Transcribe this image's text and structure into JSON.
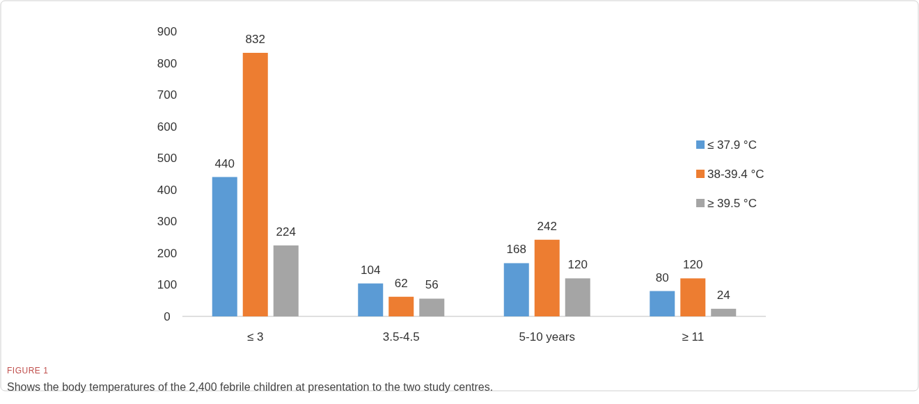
{
  "chart_data": {
    "type": "bar",
    "categories": [
      "≤ 3",
      "3.5-4.5",
      "5-10 years",
      "≥ 11"
    ],
    "series": [
      {
        "name": "≤ 37.9 °C",
        "color": "#5b9bd5",
        "values": [
          440,
          104,
          168,
          80
        ]
      },
      {
        "name": "38-39.4 °C",
        "color": "#ed7d31",
        "values": [
          832,
          62,
          242,
          120
        ]
      },
      {
        "name": "≥ 39.5 °C",
        "color": "#a5a5a5",
        "values": [
          224,
          56,
          120,
          24
        ]
      }
    ],
    "ylim": [
      0,
      900
    ],
    "yticks": [
      0,
      100,
      200,
      300,
      400,
      500,
      600,
      700,
      800,
      900
    ],
    "data_labels": true,
    "legend": "right",
    "grid": false,
    "annotations": [
      "FIGURE 1",
      "Shows the body temperatures of the 2,400 febrile children at presentation to the two study centres."
    ]
  }
}
